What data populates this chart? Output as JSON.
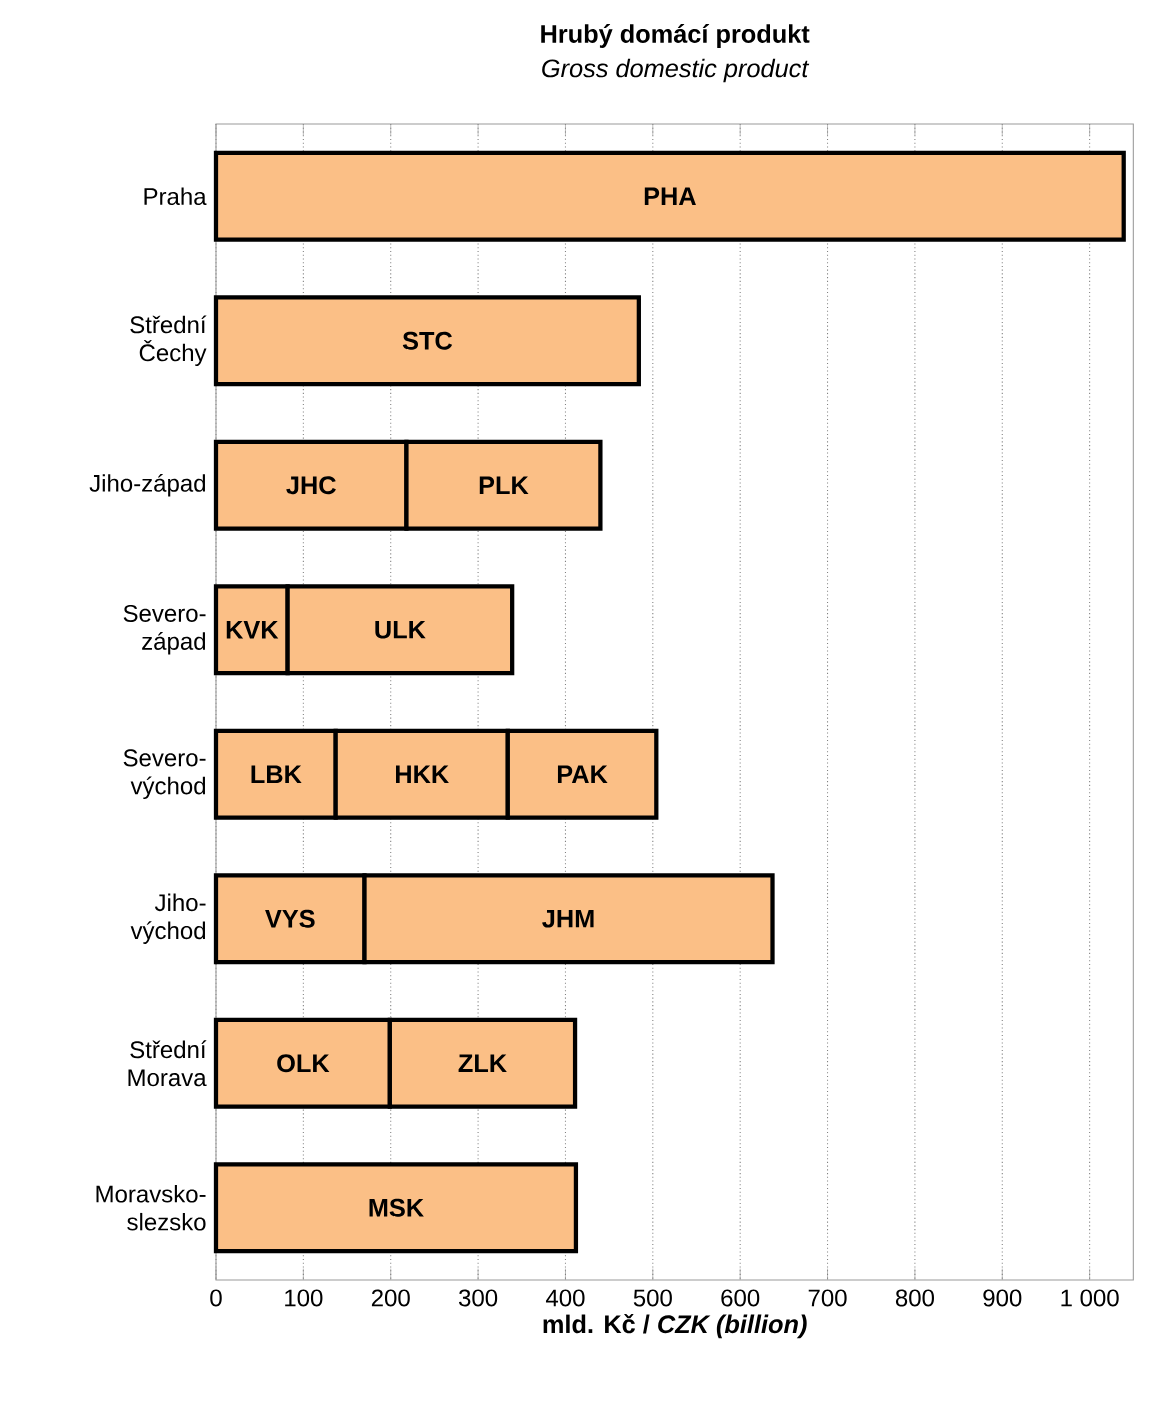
{
  "chart_data": {
    "type": "bar",
    "orientation": "horizontal",
    "stacked": true,
    "title": "Hrubý domácí produkt",
    "subtitle": "Gross domestic product",
    "xlabel": "mld. Kč / *CZK (billion)*",
    "categories": [
      "Praha",
      "Střední Čechy",
      "Jiho-západ",
      "Severo-západ",
      "Severo-východ",
      "Jiho-východ",
      "Střední Morava",
      "Moravsko-slezsko"
    ],
    "series": [
      {
        "name": "PHA",
        "color": "#fbbf86",
        "values": [
          1039,
          null,
          null,
          null,
          null,
          null,
          null,
          null
        ]
      },
      {
        "name": "STC",
        "color": "#fbbf86",
        "values": [
          null,
          484,
          null,
          null,
          null,
          null,
          null,
          null
        ]
      },
      {
        "name": "JHC",
        "color": "#fbbf86",
        "values": [
          null,
          null,
          218,
          null,
          null,
          null,
          null,
          null
        ]
      },
      {
        "name": "PLK",
        "color": "#fbbf86",
        "values": [
          null,
          null,
          222,
          null,
          null,
          null,
          null,
          null
        ]
      },
      {
        "name": "KVK",
        "color": "#fbbf86",
        "values": [
          null,
          null,
          null,
          82,
          null,
          null,
          null,
          null
        ]
      },
      {
        "name": "ULK",
        "color": "#fbbf86",
        "values": [
          null,
          null,
          null,
          257,
          null,
          null,
          null,
          null
        ]
      },
      {
        "name": "LBK",
        "color": "#fbbf86",
        "values": [
          null,
          null,
          null,
          null,
          137,
          null,
          null,
          null
        ]
      },
      {
        "name": "HKK",
        "color": "#fbbf86",
        "values": [
          null,
          null,
          null,
          null,
          197,
          null,
          null,
          null
        ]
      },
      {
        "name": "PAK",
        "color": "#fbbf86",
        "values": [
          null,
          null,
          null,
          null,
          170,
          null,
          null,
          null
        ]
      },
      {
        "name": "VYS",
        "color": "#fbbf86",
        "values": [
          null,
          null,
          null,
          null,
          null,
          170,
          null,
          null
        ]
      },
      {
        "name": "JHM",
        "color": "#fbbf86",
        "values": [
          null,
          null,
          null,
          null,
          null,
          467,
          null,
          null
        ]
      },
      {
        "name": "OLK",
        "color": "#fbbf86",
        "values": [
          null,
          null,
          null,
          null,
          null,
          null,
          199,
          null
        ]
      },
      {
        "name": "ZLK",
        "color": "#fbbf86",
        "values": [
          null,
          null,
          null,
          null,
          null,
          null,
          212,
          null
        ]
      },
      {
        "name": "MSK",
        "color": "#fbbf86",
        "values": [
          null,
          null,
          null,
          null,
          null,
          null,
          null,
          412
        ]
      }
    ],
    "xlim": [
      0,
      1050
    ],
    "xticks": [
      0,
      100,
      200,
      300,
      400,
      500,
      600,
      700,
      800,
      900,
      {
        "value": 1000,
        "label": "1 000"
      }
    ],
    "grid": "x"
  }
}
